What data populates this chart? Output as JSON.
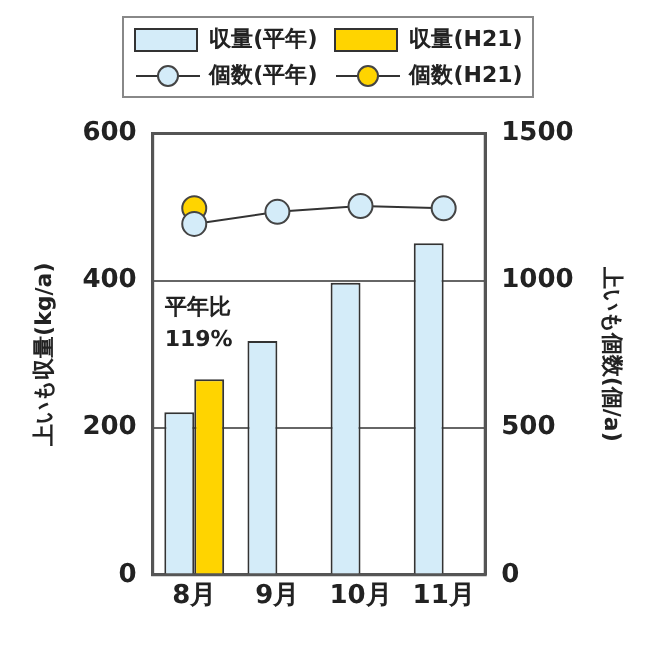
{
  "chart_data": {
    "type": "bar",
    "categories": [
      "8月",
      "9月",
      "10月",
      "11月"
    ],
    "ylabel": "上いも収量(kg/a)",
    "y2label": "上いも個数(個/a)",
    "series": [
      {
        "name": "収量(平年)",
        "color": "#d4ecf9",
        "values": [
          221,
          318,
          397,
          451
        ]
      },
      {
        "name": "収量(H21)",
        "color": "#ffd400",
        "values": [
          266,
          null,
          null,
          null
        ]
      },
      {
        "name": "個数(平年)",
        "type": "line",
        "axis": "y2",
        "color": "#d4ecf9",
        "values": [
          1193,
          1234,
          1254,
          1246
        ]
      },
      {
        "name": "個数(H21)",
        "type": "line",
        "axis": "y2",
        "color": "#ffd400",
        "values": [
          1246,
          null,
          null,
          null
        ]
      }
    ],
    "ylim": [
      0,
      600
    ],
    "yticks": [
      0,
      200,
      400,
      600
    ],
    "y2lim": [
      0,
      1500
    ],
    "y2ticks": [
      0,
      500,
      1000,
      1500
    ],
    "grid": "y",
    "legend": "top",
    "marker": "circle",
    "annotations": [
      "平年比\n119%"
    ]
  }
}
